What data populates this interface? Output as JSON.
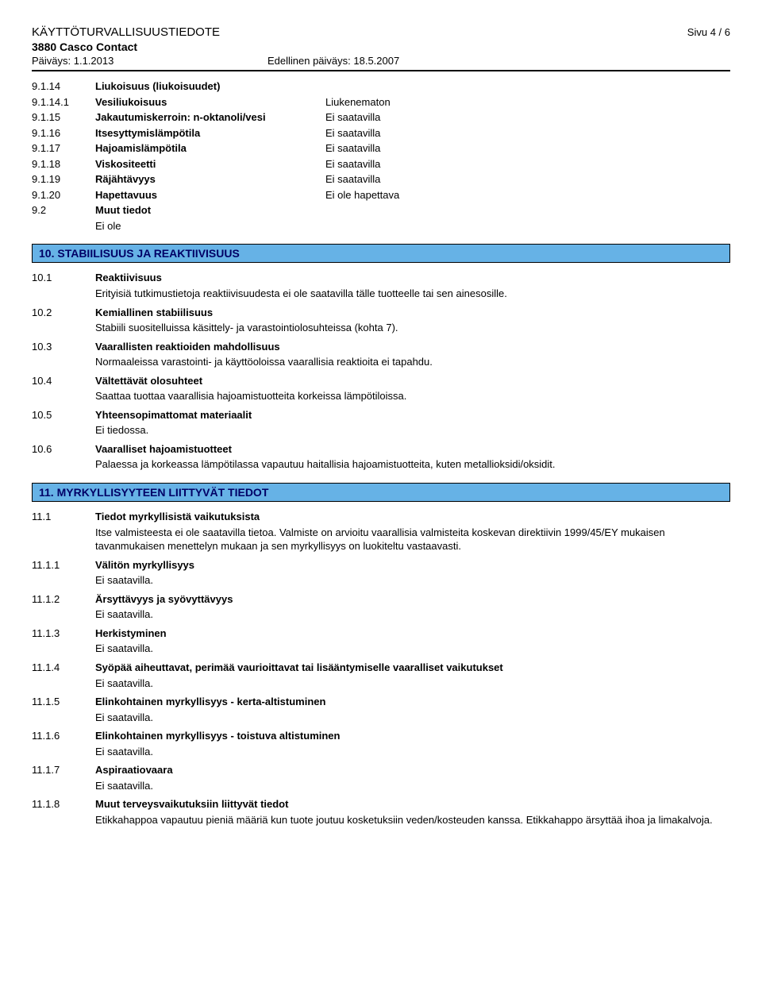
{
  "colors": {
    "section_bg": "#66b2e6",
    "section_text": "#000066",
    "section_border": "#000000",
    "rule": "#000000"
  },
  "fonts": {
    "body_pt": 13,
    "title_pt": 15,
    "section_pt": 14
  },
  "header": {
    "title": "KÄYTTÖTURVALLISUUSTIEDOTE",
    "page": "Sivu 4 / 6",
    "product": "3880 Casco Contact",
    "date_label": "Päiväys: 1.1.2013",
    "prev_date_label": "Edellinen päiväys: 18.5.2007"
  },
  "props": [
    {
      "num": "9.1.14",
      "label": "Liukoisuus (liukoisuudet)",
      "val": ""
    },
    {
      "num": "9.1.14.1",
      "label": "Vesiliukoisuus",
      "val": "Liukenematon"
    },
    {
      "num": "9.1.15",
      "label": "Jakautumiskerroin: n-oktanoli/vesi",
      "val": "Ei saatavilla"
    },
    {
      "num": "9.1.16",
      "label": "Itsesyttymislämpötila",
      "val": "Ei saatavilla"
    },
    {
      "num": "9.1.17",
      "label": "Hajoamislämpötila",
      "val": "Ei saatavilla"
    },
    {
      "num": "9.1.18",
      "label": "Viskositeetti",
      "val": "Ei saatavilla"
    },
    {
      "num": "9.1.19",
      "label": "Räjähtävyys",
      "val": "Ei saatavilla"
    },
    {
      "num": "9.1.20",
      "label": "Hapettavuus",
      "val": "Ei ole hapettava"
    }
  ],
  "muut": {
    "num": "9.2",
    "label": "Muut tiedot",
    "body": "Ei ole"
  },
  "sections": {
    "s10": {
      "heading": "10. STABIILISUUS JA REAKTIIVISUUS",
      "items": [
        {
          "num": "10.1",
          "label": "Reaktiivisuus",
          "body": "Erityisiä tutkimustietoja reaktiivisuudesta ei ole saatavilla tälle tuotteelle tai sen ainesosille."
        },
        {
          "num": "10.2",
          "label": "Kemiallinen stabiilisuus",
          "body": "Stabiili suositelluissa käsittely- ja varastointiolosuhteissa (kohta 7)."
        },
        {
          "num": "10.3",
          "label": "Vaarallisten reaktioiden mahdollisuus",
          "body": "Normaaleissa varastointi- ja käyttöoloissa vaarallisia reaktioita ei tapahdu."
        },
        {
          "num": "10.4",
          "label": "Vältettävät olosuhteet",
          "body": "Saattaa tuottaa vaarallisia hajoamistuotteita korkeissa lämpötiloissa."
        },
        {
          "num": "10.5",
          "label": "Yhteensopimattomat materiaalit",
          "body": "Ei tiedossa."
        },
        {
          "num": "10.6",
          "label": "Vaaralliset hajoamistuotteet",
          "body": "Palaessa ja korkeassa lämpötilassa vapautuu haitallisia hajoamistuotteita, kuten metallioksidi/oksidit."
        }
      ]
    },
    "s11": {
      "heading": "11. MYRKYLLISYYTEEN LIITTYVÄT TIEDOT",
      "lead": {
        "num": "11.1",
        "label": "Tiedot myrkyllisistä vaikutuksista",
        "body": "Itse valmisteesta ei ole saatavilla tietoa. Valmiste on arvioitu vaarallisia valmisteita koskevan direktiivin 1999/45/EY mukaisen tavanmukaisen menettelyn mukaan ja sen myrkyllisyys on luokiteltu vastaavasti."
      },
      "items": [
        {
          "num": "11.1.1",
          "label": "Välitön myrkyllisyys",
          "body": "Ei saatavilla."
        },
        {
          "num": "11.1.2",
          "label": "Ärsyttävyys ja syövyttävyys",
          "body": "Ei saatavilla."
        },
        {
          "num": "11.1.3",
          "label": "Herkistyminen",
          "body": "Ei saatavilla."
        },
        {
          "num": "11.1.4",
          "label": "Syöpää aiheuttavat, perimää vaurioittavat tai lisääntymiselle vaaralliset vaikutukset",
          "body": "Ei saatavilla."
        },
        {
          "num": "11.1.5",
          "label": "Elinkohtainen myrkyllisyys - kerta-altistuminen",
          "body": "Ei saatavilla."
        },
        {
          "num": "11.1.6",
          "label": "Elinkohtainen myrkyllisyys - toistuva altistuminen",
          "body": "Ei saatavilla."
        },
        {
          "num": "11.1.7",
          "label": "Aspiraatiovaara",
          "body": "Ei saatavilla."
        },
        {
          "num": "11.1.8",
          "label": "Muut terveysvaikutuksiin liittyvät tiedot",
          "body": "Etikkahappoa vapautuu pieniä määriä kun tuote joutuu kosketuksiin veden/kosteuden kanssa. Etikkahappo ärsyttää ihoa ja limakalvoja."
        }
      ]
    }
  }
}
